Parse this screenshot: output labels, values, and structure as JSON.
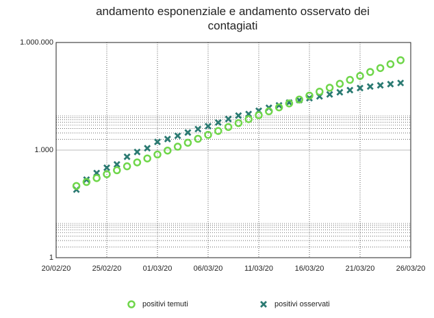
{
  "chart_data": {
    "type": "scatter",
    "title": "andamento esponenziale e andamento osservato dei contagiati",
    "x": [
      "22/02/20",
      "23/02/20",
      "24/02/20",
      "25/02/20",
      "26/02/20",
      "27/02/20",
      "28/02/20",
      "29/02/20",
      "01/03/20",
      "02/03/20",
      "03/03/20",
      "04/03/20",
      "05/03/20",
      "06/03/20",
      "07/03/20",
      "08/03/20",
      "09/03/20",
      "10/03/20",
      "11/03/20",
      "12/03/20",
      "13/03/20",
      "14/03/20",
      "15/03/20",
      "16/03/20",
      "17/03/20",
      "18/03/20",
      "19/03/20",
      "20/03/20",
      "21/03/20",
      "22/03/20",
      "23/03/20",
      "24/03/20",
      "25/03/20"
    ],
    "series": [
      {
        "name": "positivi temuti",
        "color": "#6fd64a",
        "marker": "circle",
        "values": [
          100,
          129,
          166,
          213,
          274,
          353,
          454,
          584,
          752,
          968,
          1245,
          1603,
          2063,
          2655,
          3417,
          4398,
          5660,
          7285,
          9375,
          12066,
          15529,
          19986,
          25722,
          33104,
          42605,
          54833,
          70570,
          90823,
          116890,
          150437,
          193612,
          249179,
          320693
        ]
      },
      {
        "name": "positivi osservati",
        "color": "#2b7a72",
        "marker": "x",
        "values": [
          79,
          150,
          229,
          322,
          400,
          650,
          888,
          1128,
          1694,
          2036,
          2502,
          3089,
          3858,
          4636,
          5883,
          7375,
          9172,
          10149,
          12462,
          15113,
          17660,
          21157,
          24747,
          27980,
          31506,
          35713,
          41035,
          47021,
          53578,
          59138,
          63927,
          69176,
          74386
        ]
      }
    ],
    "xlim": [
      "20/02/20",
      "26/03/20"
    ],
    "xticks": [
      "20/02/20",
      "25/02/20",
      "01/03/20",
      "06/03/20",
      "11/03/20",
      "16/03/20",
      "21/03/20",
      "26/03/20"
    ],
    "ylim": [
      1,
      1000000
    ],
    "log_y": true,
    "yticks": [
      1,
      {
        "value": 1000,
        "label": "1.000"
      },
      {
        "value": 1000000,
        "label": "1.000.000"
      }
    ],
    "grid": true,
    "legend": "bottom"
  }
}
